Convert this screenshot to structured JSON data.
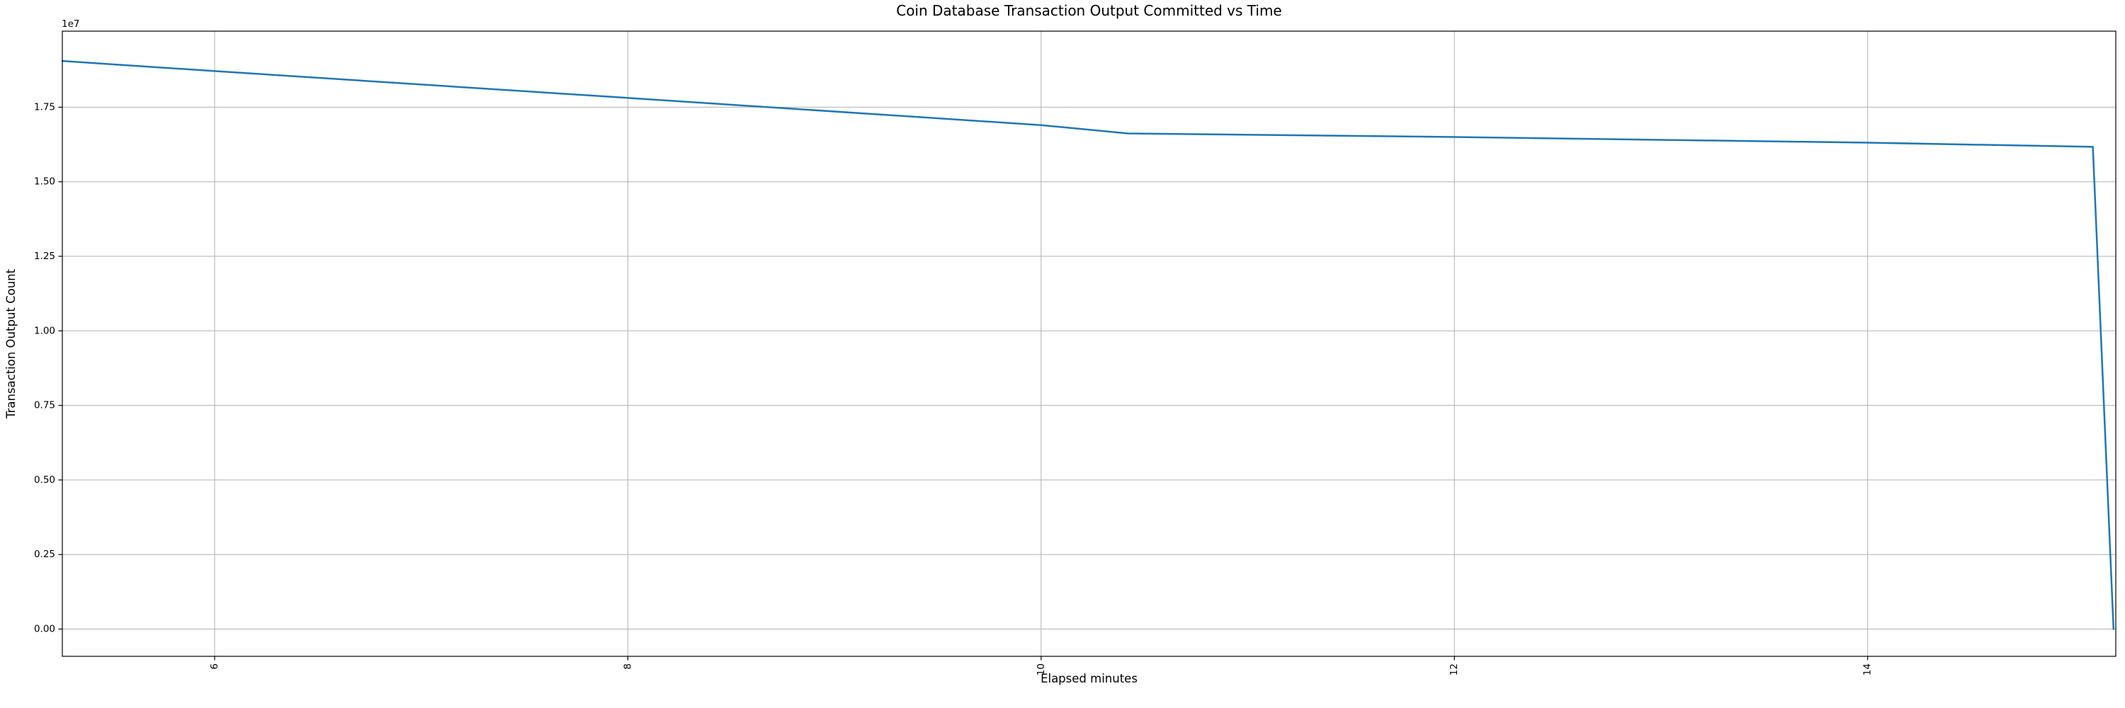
{
  "figure": {
    "background": "#ffffff"
  },
  "colors": {
    "line": "#1f77b4",
    "grid": "#b0b0b0",
    "spine": "#000000",
    "tick": "#000000",
    "text": "#000000"
  },
  "chart_data": {
    "type": "line",
    "title": "Coin Database Transaction Output Committed vs Time",
    "xlabel": "Elapsed minutes",
    "ylabel": "Transaction Output Count",
    "y_offset_factor": "1e7",
    "grid": true,
    "legend": false,
    "x_tick_rotation": 90,
    "xlim": [
      5.263,
      15.201
    ],
    "ylim": [
      -914000,
      20050000
    ],
    "xticks": [
      6,
      8,
      10,
      12,
      14
    ],
    "xtick_labels": [
      "6",
      "8",
      "10",
      "12",
      "14"
    ],
    "yticks": [
      0,
      2500000,
      5000000,
      7500000,
      10000000,
      12500000,
      15000000,
      17500000
    ],
    "ytick_labels": [
      "0.00",
      "0.25",
      "0.50",
      "0.75",
      "1.00",
      "1.25",
      "1.50",
      "1.75"
    ],
    "series": [
      {
        "name": "transaction_output_count",
        "x": [
          5.263,
          6.0,
          8.0,
          10.0,
          10.42,
          12.0,
          14.0,
          15.09,
          15.19
        ],
        "y": [
          19050000,
          18710000,
          17810000,
          16900000,
          16620000,
          16500000,
          16310000,
          16170000,
          0
        ]
      }
    ]
  }
}
